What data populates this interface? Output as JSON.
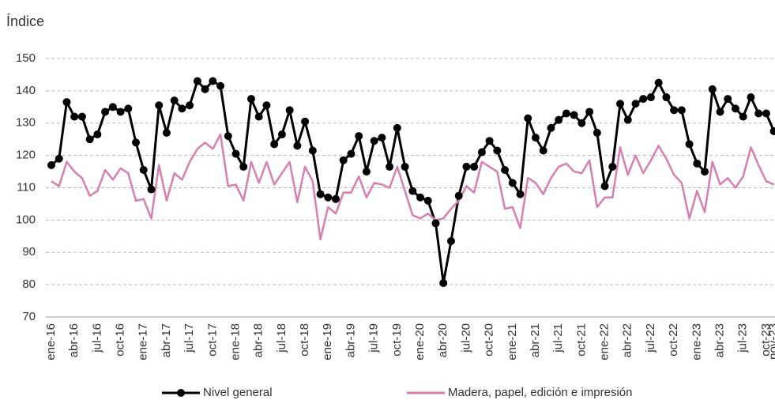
{
  "chart_data": {
    "type": "line",
    "y_axis_label": "Índice",
    "categories": [
      "ene-16",
      null,
      null,
      "abr-16",
      null,
      null,
      "jul-16",
      null,
      null,
      "oct-16",
      null,
      null,
      "ene-17",
      null,
      null,
      "abr-17",
      null,
      null,
      "jul-17",
      null,
      null,
      "oct-17",
      null,
      null,
      "ene-18",
      null,
      null,
      "abr-18",
      null,
      null,
      "jul-18",
      null,
      null,
      "oct-18",
      null,
      null,
      "ene-19",
      null,
      null,
      "abr-19",
      null,
      null,
      "jul-19",
      null,
      null,
      "oct-19",
      null,
      null,
      "ene-20",
      null,
      null,
      "abr-20",
      null,
      null,
      "jul-20",
      null,
      null,
      "oct-20",
      null,
      null,
      "ene-21",
      null,
      null,
      "abr-21",
      null,
      null,
      "jul-21",
      null,
      null,
      "oct-21",
      null,
      null,
      "ene-22",
      null,
      null,
      "abr-22",
      null,
      null,
      "jul-22",
      null,
      null,
      "oct-22",
      null,
      null,
      "ene-23",
      null,
      null,
      "abr-23",
      null,
      null,
      "jul-23",
      null,
      null,
      "oct-23",
      "nov-23"
    ],
    "series": [
      {
        "name": "Nivel general",
        "color": "#000000",
        "markers": true,
        "values": [
          117,
          119,
          136.5,
          132,
          132,
          125,
          126.5,
          133.5,
          135,
          133.5,
          134.5,
          124,
          115.5,
          109.5,
          135.5,
          127,
          137,
          134.5,
          135.5,
          143,
          140.5,
          143,
          141.5,
          126,
          120.5,
          116.5,
          137.5,
          132,
          135.5,
          123.5,
          126.5,
          134,
          123,
          130.5,
          121.5,
          108,
          107,
          106.5,
          118.5,
          120.5,
          126,
          115,
          124.5,
          125.5,
          116.5,
          128.5,
          116.5,
          109,
          107,
          106,
          99,
          80.5,
          93.5,
          107.5,
          116.5,
          116.5,
          121,
          124.5,
          121.5,
          115.5,
          111.5,
          108,
          131.5,
          125.5,
          121.5,
          128.5,
          131,
          133,
          132.5,
          130,
          133.5,
          127,
          110.5,
          116.5,
          136,
          131,
          136,
          137.5,
          138,
          142.5,
          138,
          134,
          134,
          123.5,
          117.5,
          115,
          140.5,
          133.5,
          137.5,
          134.5,
          132,
          138,
          133,
          133,
          127.5
        ]
      },
      {
        "name": "Madera, papel, edición e impresión",
        "color": "#d67fb0",
        "markers": false,
        "values": [
          112,
          110.5,
          118,
          115,
          113,
          107.5,
          109,
          115.5,
          112.5,
          116,
          114.5,
          106,
          106.5,
          100.5,
          117,
          106,
          114.5,
          112.5,
          118,
          122,
          124,
          122,
          126.5,
          110.5,
          111,
          106,
          118,
          111.5,
          118,
          111,
          114.5,
          118,
          105.5,
          116.5,
          112,
          94,
          104,
          102,
          108.5,
          108.5,
          113.5,
          107,
          111.5,
          111,
          110,
          116.5,
          109,
          101.5,
          100.5,
          102,
          100,
          100.5,
          103.5,
          106,
          110.5,
          108.5,
          118,
          116.5,
          115,
          103.5,
          104,
          97.5,
          113,
          111.5,
          108,
          113,
          116.5,
          117.5,
          115,
          114.5,
          118.5,
          104,
          107,
          107,
          122.5,
          114,
          120,
          114.5,
          118.5,
          123,
          119,
          114,
          111.5,
          100.5,
          109,
          102.5,
          118,
          111,
          113,
          110,
          113.5,
          122.5,
          117,
          112,
          111
        ]
      }
    ],
    "ylim": [
      70,
      150
    ],
    "yticks": [
      70,
      80,
      90,
      100,
      110,
      120,
      130,
      140,
      150
    ],
    "grid": true,
    "legend": "bottom"
  }
}
